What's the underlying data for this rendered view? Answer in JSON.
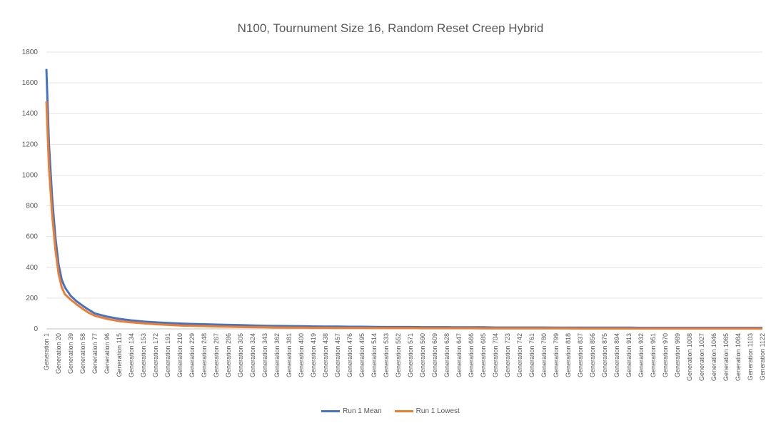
{
  "chart_data": {
    "type": "line",
    "title": "N100, Tournument Size 16, Random Reset Creep Hybrid",
    "ylim": [
      0,
      1800
    ],
    "yticks": [
      0,
      200,
      400,
      600,
      800,
      1000,
      1200,
      1400,
      1600,
      1800
    ],
    "grid": true,
    "legend_position": "bottom",
    "x_tick_labels": [
      "Generation 1",
      "Generation 20",
      "Generation 39",
      "Generation 58",
      "Generation 77",
      "Generation 96",
      "Generation 115",
      "Generation 134",
      "Generation 153",
      "Generation 172",
      "Generation 191",
      "Generation 210",
      "Generation 229",
      "Generation 248",
      "Generation 267",
      "Generation 286",
      "Generation 305",
      "Generation 324",
      "Generation 343",
      "Generation 362",
      "Generation 381",
      "Generation 400",
      "Generation 419",
      "Generation 438",
      "Generation 457",
      "Generation 476",
      "Generation 495",
      "Generation 514",
      "Generation 533",
      "Generation 552",
      "Generation 571",
      "Generation 590",
      "Generation 609",
      "Generation 628",
      "Generation 647",
      "Generation 666",
      "Generation 685",
      "Generation 704",
      "Generation 723",
      "Generation 742",
      "Generation 761",
      "Generation 780",
      "Generation 799",
      "Generation 818",
      "Generation 837",
      "Generation 856",
      "Generation 875",
      "Generation 894",
      "Generation 913",
      "Generation 932",
      "Generation 951",
      "Generation 970",
      "Generation 989",
      "Generation 1008",
      "Generation 1027",
      "Generation 1046",
      "Generation 1065",
      "Generation 1084",
      "Generation 1103",
      "Generation 1122"
    ],
    "x": [
      1,
      5,
      10,
      15,
      20,
      25,
      30,
      39,
      48,
      58,
      67,
      77,
      86,
      96,
      115,
      134,
      153,
      172,
      191,
      210,
      229,
      248,
      267,
      286,
      305,
      324,
      343,
      362,
      381,
      400,
      419,
      438,
      457,
      476,
      495,
      514,
      533,
      552,
      571,
      590,
      609,
      628,
      647,
      666,
      685,
      704,
      723,
      742,
      761,
      780,
      799,
      818,
      837,
      856,
      875,
      894,
      913,
      932,
      951,
      970,
      989,
      1008,
      1027,
      1046,
      1065,
      1084,
      1103,
      1122
    ],
    "series": [
      {
        "name": "Run 1 Mean",
        "color": "#4472C4",
        "values": [
          1690,
          1200,
          850,
          600,
          420,
          320,
          270,
          215,
          180,
          150,
          125,
          100,
          90,
          80,
          65,
          55,
          48,
          42,
          38,
          35,
          32,
          30,
          28,
          26,
          24,
          22,
          20,
          19,
          18,
          17,
          16,
          15,
          15,
          14,
          14,
          13,
          12,
          12,
          12,
          11,
          11,
          11,
          10,
          10,
          10,
          9,
          9,
          9,
          9,
          9,
          8,
          8,
          8,
          8,
          8,
          8,
          8,
          7,
          7,
          7,
          7,
          7,
          7,
          7,
          7,
          7,
          7,
          7
        ]
      },
      {
        "name": "Run 1 Lowest",
        "color": "#ED7D31",
        "values": [
          1480,
          1050,
          740,
          520,
          360,
          270,
          225,
          190,
          160,
          130,
          105,
          85,
          75,
          65,
          50,
          42,
          36,
          30,
          26,
          22,
          20,
          18,
          16,
          14,
          12,
          11,
          10,
          9,
          8,
          8,
          7,
          7,
          6,
          6,
          6,
          5,
          5,
          5,
          5,
          4,
          4,
          4,
          4,
          4,
          3,
          3,
          3,
          3,
          3,
          3,
          3,
          3,
          2,
          2,
          2,
          2,
          2,
          2,
          2,
          2,
          2,
          2,
          2,
          2,
          2,
          2,
          2,
          2
        ]
      }
    ]
  }
}
